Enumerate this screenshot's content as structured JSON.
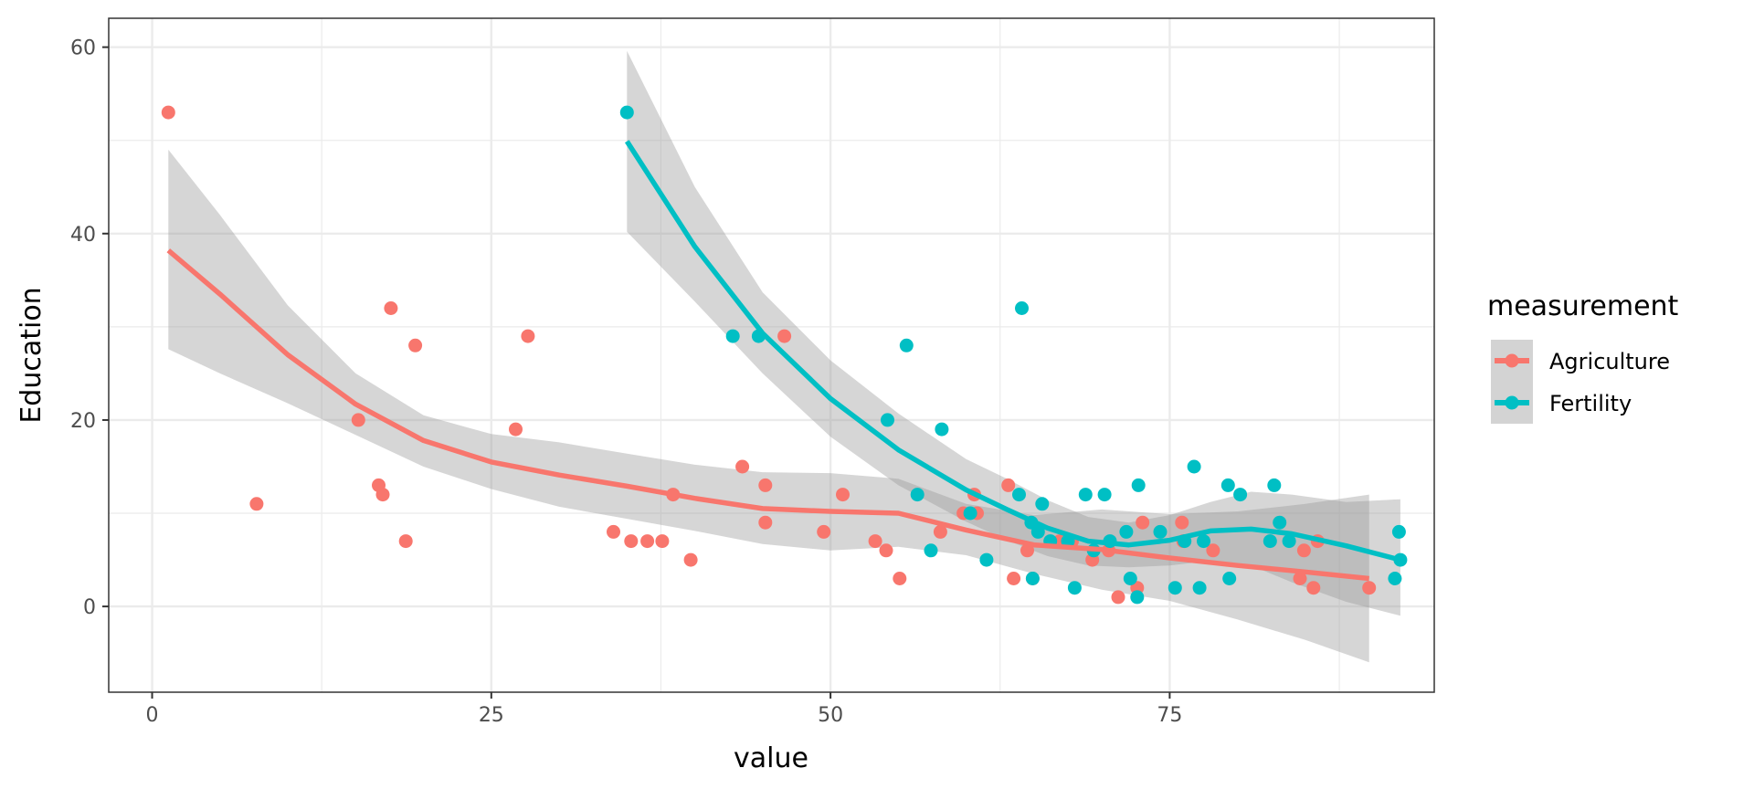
{
  "chart_data": {
    "type": "scatter",
    "title": "",
    "xlabel": "value",
    "ylabel": "Education",
    "xlim": [
      -3.2,
      94.5
    ],
    "ylim": [
      -9.2,
      63.1
    ],
    "x_ticks": [
      0,
      25,
      50,
      75
    ],
    "y_ticks": [
      0,
      20,
      40,
      60
    ],
    "x_tick_labels": [
      "0",
      "25",
      "50",
      "75"
    ],
    "y_tick_labels": [
      "0",
      "20",
      "40",
      "60"
    ],
    "grid": true,
    "legend": {
      "title": "measurement",
      "position": "right"
    },
    "band_color": "#999999",
    "series": [
      {
        "name": "Agriculture",
        "color": "#F8766D",
        "points": [
          [
            1.2,
            53
          ],
          [
            7.7,
            11
          ],
          [
            15.2,
            20
          ],
          [
            16.7,
            13
          ],
          [
            17.0,
            12
          ],
          [
            17.6,
            32
          ],
          [
            18.7,
            7
          ],
          [
            19.4,
            28
          ],
          [
            26.8,
            19
          ],
          [
            27.7,
            29
          ],
          [
            34.0,
            8
          ],
          [
            35.3,
            7
          ],
          [
            36.5,
            7
          ],
          [
            37.6,
            7
          ],
          [
            38.4,
            12
          ],
          [
            39.7,
            5
          ],
          [
            43.5,
            15
          ],
          [
            45.2,
            9
          ],
          [
            45.2,
            13
          ],
          [
            46.6,
            29
          ],
          [
            49.5,
            8
          ],
          [
            50.9,
            12
          ],
          [
            53.3,
            7
          ],
          [
            54.1,
            6
          ],
          [
            55.1,
            3
          ],
          [
            58.1,
            8
          ],
          [
            59.8,
            10
          ],
          [
            60.6,
            12
          ],
          [
            60.8,
            10
          ],
          [
            63.1,
            13
          ],
          [
            63.5,
            3
          ],
          [
            64.5,
            6
          ],
          [
            64.9,
            3
          ],
          [
            66.9,
            7
          ],
          [
            67.8,
            7
          ],
          [
            69.3,
            5
          ],
          [
            70.5,
            6
          ],
          [
            71.2,
            1
          ],
          [
            72.6,
            2
          ],
          [
            73.0,
            9
          ],
          [
            75.9,
            9
          ],
          [
            76.0,
            7
          ],
          [
            78.2,
            6
          ],
          [
            84.6,
            3
          ],
          [
            85.6,
            2
          ],
          [
            89.7,
            2
          ],
          [
            84.9,
            6
          ],
          [
            85.9,
            7
          ]
        ],
        "smooth": {
          "x": [
            1.2,
            5,
            10,
            15,
            20,
            25,
            30,
            35,
            40,
            45,
            50,
            55,
            60,
            65,
            70,
            75,
            80,
            85,
            89.7
          ],
          "y": [
            38.2,
            33.5,
            27.0,
            21.7,
            17.8,
            15.5,
            14.1,
            12.9,
            11.6,
            10.5,
            10.2,
            10.0,
            8.2,
            6.6,
            6.1,
            5.2,
            4.4,
            3.7,
            3.0
          ],
          "lower": [
            27.6,
            25.0,
            21.8,
            18.4,
            15.0,
            12.6,
            10.7,
            9.4,
            8.1,
            6.7,
            6.0,
            6.4,
            5.5,
            3.5,
            1.8,
            0.6,
            -1.4,
            -3.6,
            -6.0
          ],
          "upper": [
            49.0,
            42.0,
            32.3,
            25.0,
            20.5,
            18.5,
            17.6,
            16.4,
            15.2,
            14.4,
            14.3,
            13.7,
            11.0,
            9.8,
            10.4,
            9.9,
            10.2,
            11.0,
            12.0
          ]
        }
      },
      {
        "name": "Fertility",
        "color": "#00BFC4",
        "points": [
          [
            35.0,
            53
          ],
          [
            42.8,
            29
          ],
          [
            44.7,
            29
          ],
          [
            54.2,
            20
          ],
          [
            55.6,
            28
          ],
          [
            56.4,
            12
          ],
          [
            57.4,
            6
          ],
          [
            58.2,
            19
          ],
          [
            60.3,
            10
          ],
          [
            61.5,
            5
          ],
          [
            63.9,
            12
          ],
          [
            64.1,
            32
          ],
          [
            64.8,
            9
          ],
          [
            64.9,
            3
          ],
          [
            65.3,
            8
          ],
          [
            65.6,
            11
          ],
          [
            66.2,
            7
          ],
          [
            67.5,
            7
          ],
          [
            68.0,
            2
          ],
          [
            68.8,
            12
          ],
          [
            69.4,
            6
          ],
          [
            70.2,
            12
          ],
          [
            70.6,
            7
          ],
          [
            71.8,
            8
          ],
          [
            72.1,
            3
          ],
          [
            72.6,
            1
          ],
          [
            72.7,
            13
          ],
          [
            74.3,
            8
          ],
          [
            75.4,
            2
          ],
          [
            76.1,
            7
          ],
          [
            76.8,
            15
          ],
          [
            77.2,
            2
          ],
          [
            77.5,
            7
          ],
          [
            79.3,
            13
          ],
          [
            79.4,
            3
          ],
          [
            80.2,
            12
          ],
          [
            82.4,
            7
          ],
          [
            82.7,
            13
          ],
          [
            83.1,
            9
          ],
          [
            83.8,
            7
          ],
          [
            91.9,
            8
          ],
          [
            92.0,
            5
          ],
          [
            91.6,
            3
          ]
        ],
        "smooth": {
          "x": [
            35.0,
            40,
            45,
            50,
            55,
            60,
            63,
            66,
            69,
            72,
            75,
            78,
            81,
            84,
            88,
            92.0
          ],
          "y": [
            49.9,
            38.6,
            29.3,
            22.3,
            16.8,
            12.5,
            10.4,
            8.4,
            7.0,
            6.6,
            7.1,
            8.1,
            8.3,
            7.8,
            6.5,
            5.0
          ],
          "lower": [
            40.2,
            32.7,
            25.0,
            18.2,
            13.0,
            9.1,
            7.1,
            5.4,
            4.4,
            4.2,
            4.4,
            4.9,
            4.4,
            2.6,
            0.5,
            -1.0
          ],
          "upper": [
            59.6,
            45.0,
            33.7,
            26.4,
            20.7,
            15.8,
            13.7,
            11.4,
            9.6,
            9.0,
            9.8,
            11.2,
            12.3,
            12.0,
            11.2,
            11.5
          ]
        }
      }
    ]
  }
}
